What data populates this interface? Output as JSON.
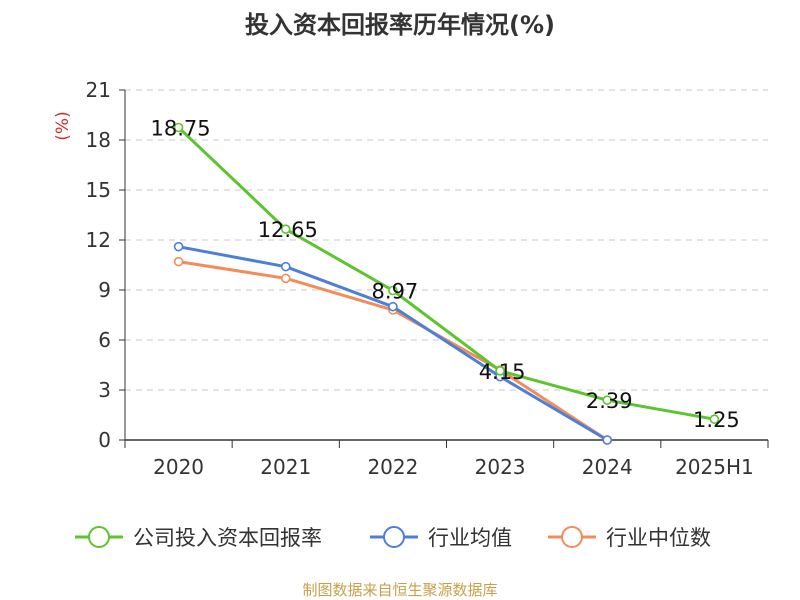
{
  "chart_data": {
    "type": "line",
    "title": "投入资本回报率历年情况(%)",
    "ylabel": "(%)",
    "categories": [
      "2020",
      "2021",
      "2022",
      "2023",
      "2024",
      "2025H1"
    ],
    "yticks": [
      "0",
      "3",
      "6",
      "9",
      "12",
      "15",
      "18",
      "21"
    ],
    "ylim": [
      0,
      21
    ],
    "grid": true,
    "legend_position": "bottom",
    "series": [
      {
        "name": "公司投入资本回报率",
        "color": "#5cc42d",
        "values": [
          18.75,
          12.65,
          8.97,
          4.15,
          2.39,
          1.25
        ],
        "labels": [
          "18.75",
          "12.65",
          "8.97",
          "4.15",
          "2.39",
          "1.25"
        ]
      },
      {
        "name": "行业均值",
        "color": "#4e7fd6",
        "values": [
          11.6,
          10.4,
          8.0,
          3.8,
          0.0,
          null
        ]
      },
      {
        "name": "行业中位数",
        "color": "#f28c5a",
        "values": [
          10.7,
          9.7,
          7.8,
          4.2,
          0.0,
          null
        ]
      }
    ]
  },
  "source": "制图数据来自恒生聚源数据库"
}
